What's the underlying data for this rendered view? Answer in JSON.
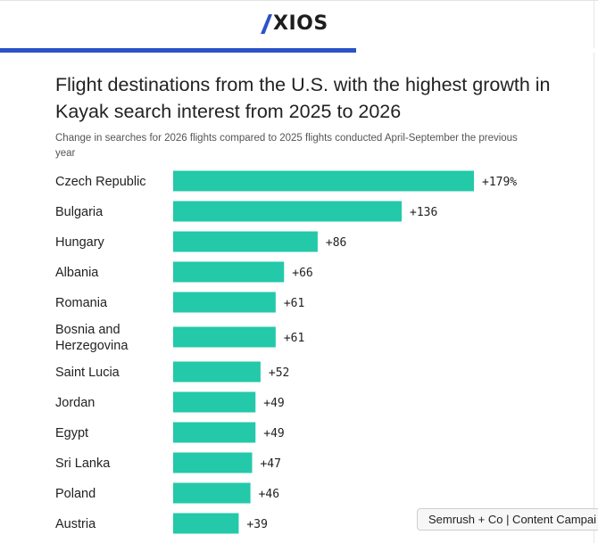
{
  "header": {
    "logo_text": "XIOS",
    "progress_fraction": 0.595
  },
  "colors": {
    "bar": "#23c9a9",
    "progress": "#2b52c8",
    "logo_mark": "#2b52c8"
  },
  "chart_data": {
    "type": "bar",
    "orientation": "horizontal",
    "title": "Flight destinations from the U.S. with the highest growth in Kayak search interest from 2025 to 2026",
    "subtitle": "Change in searches for 2026 flights compared to 2025 flights conducted April-September the previous year",
    "xlabel": "",
    "ylabel": "",
    "grid": false,
    "categories": [
      "Czech Republic",
      "Bulgaria",
      "Hungary",
      "Albania",
      "Romania",
      "Bosnia and Herzegovina",
      "Saint Lucia",
      "Jordan",
      "Egypt",
      "Sri Lanka",
      "Poland",
      "Austria"
    ],
    "category_lines": [
      [
        "Czech Republic"
      ],
      [
        "Bulgaria"
      ],
      [
        "Hungary"
      ],
      [
        "Albania"
      ],
      [
        "Romania"
      ],
      [
        "Bosnia and",
        "Herzegovina"
      ],
      [
        "Saint Lucia"
      ],
      [
        "Jordan"
      ],
      [
        "Egypt"
      ],
      [
        "Sri Lanka"
      ],
      [
        "Poland"
      ],
      [
        "Austria"
      ]
    ],
    "values": [
      179,
      136,
      86,
      66,
      61,
      61,
      52,
      49,
      49,
      47,
      46,
      39
    ],
    "value_labels": [
      "+179%",
      "+136",
      "+86",
      "+66",
      "+61",
      "+61",
      "+52",
      "+49",
      "+49",
      "+47",
      "+46",
      "+39"
    ],
    "xlim": [
      0,
      179
    ]
  },
  "overlay": {
    "chip_text": "Semrush + Co | Content Campai"
  }
}
